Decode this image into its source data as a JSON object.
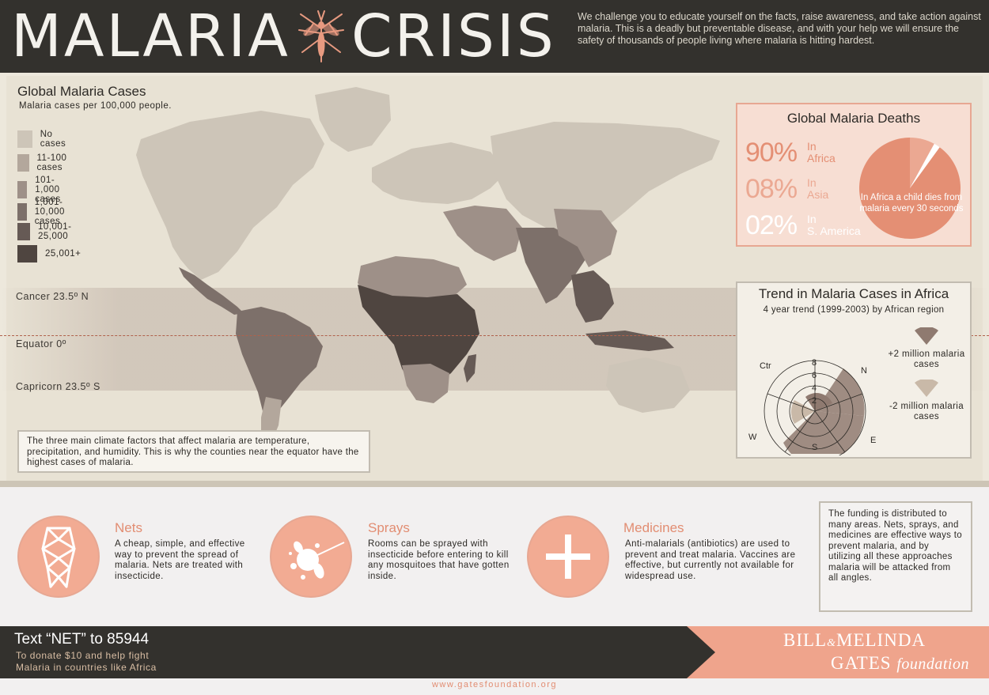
{
  "header": {
    "title_left": "MALARIA",
    "title_right": "CRISIS",
    "intro": "We challenge you to educate yourself on the facts, raise awareness, and take action against malaria.  This is a deadly but preventable disease, and with your help we will ensure the safety of thousands of people living where malaria is hitting hardest."
  },
  "map": {
    "title": "Global Malaria Cases",
    "subtitle": "Malaria cases per 100,000 people.",
    "legend": [
      {
        "label": "No cases",
        "color": "#cdc5b8"
      },
      {
        "label": "11-100 cases",
        "color": "#b3a79c"
      },
      {
        "label": "101-1,000 cases",
        "color": "#9e9088"
      },
      {
        "label": "1,001-10,000 cases",
        "color": "#7d706a"
      },
      {
        "label": "10,001-25,000",
        "color": "#665a55"
      },
      {
        "label": "25,001+",
        "color": "#4f4540"
      }
    ],
    "latitudes": {
      "cancer": "Cancer  23.5º N",
      "equator": "Equator 0º",
      "capricorn": "Capricorn 23.5º S"
    },
    "climate_note": "The three main climate factors that affect malaria are temperature, precipitation, and humidity.  This is why the counties near the equator have the highest cases of malaria."
  },
  "deaths": {
    "title": "Global Malaria Deaths",
    "items": [
      {
        "percent": "90%",
        "where": "In Africa",
        "where_line1": "In",
        "where_line2": "Africa",
        "share": 90,
        "color": "#e48f74"
      },
      {
        "percent": "08%",
        "where": "In Asia",
        "where_line1": "In",
        "where_line2": "Asia",
        "share": 8,
        "color": "#eba892"
      },
      {
        "percent": "02%",
        "where": "In S. America",
        "where_line1": "In",
        "where_line2": "S. America",
        "share": 2,
        "color": "#ffffff"
      }
    ],
    "pie_caption": "In Africa a child dies from malaria every 30 seconds"
  },
  "trend": {
    "title": "Trend in Malaria Cases in Africa",
    "subtitle": "4 year trend (1999-2003) by African region",
    "ring_labels": [
      "8",
      "6",
      "4",
      "2"
    ],
    "directions": {
      "ctr": "Ctr",
      "n": "N",
      "e": "E",
      "s": "S",
      "w": "W"
    },
    "increase_label": "+2 million malaria cases",
    "decrease_label": "-2 million malaria cases",
    "increase_color": "#8f7a70",
    "decrease_color": "#c9b9a8"
  },
  "solutions": [
    {
      "title": "Nets",
      "text": "A cheap, simple, and effective way to prevent the spread of malaria.  Nets are treated with insecticide.",
      "icon": "net-icon"
    },
    {
      "title": "Sprays",
      "text": "Rooms can be sprayed with insecticide before entering to kill any mosquitoes that have gotten inside.",
      "icon": "spray-icon"
    },
    {
      "title": "Medicines",
      "text": "Anti-malarials (antibiotics) are used to prevent and treat malaria. Vaccines are effective, but currently not available for widespread use.",
      "icon": "plus-icon"
    }
  ],
  "funding_note": "The funding is distributed to many areas.  Nets, sprays, and medicines are effective ways to prevent malaria, and by utilizing all these approaches malaria will be attacked from all angles.",
  "footer": {
    "sms_title": "Text “NET” to 85944",
    "sms_sub_1": "To donate $10 and help fight",
    "sms_sub_2": "Malaria in countries like Africa",
    "brand_1a": "BILL",
    "brand_amp": "&",
    "brand_1b": "MELINDA",
    "brand_2a": "GATES",
    "brand_2b": "foundation",
    "url": "www.gatesfoundation.org"
  },
  "colors": {
    "accent": "#e28d72",
    "dark": "#33312d"
  }
}
